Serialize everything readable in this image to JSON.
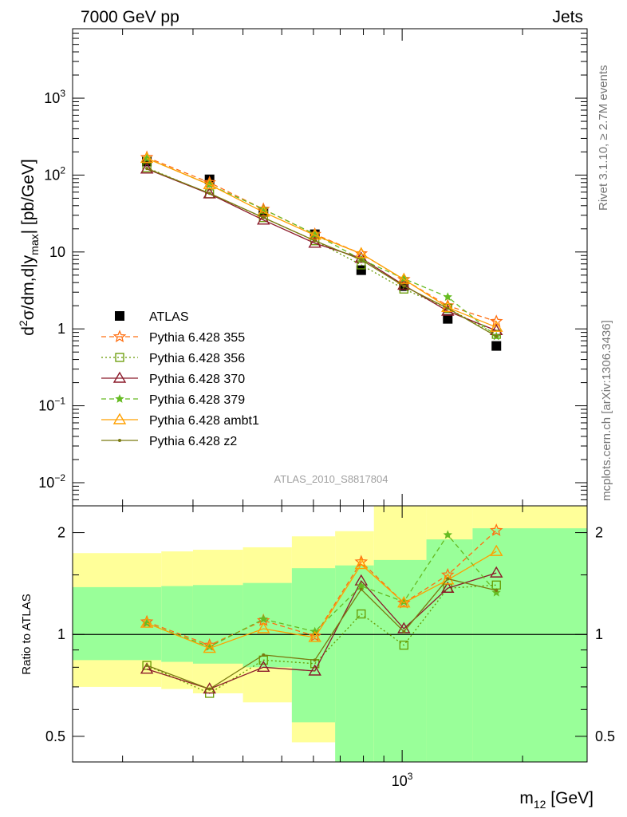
{
  "header": {
    "left": "7000 GeV pp",
    "right": "Jets"
  },
  "side": {
    "rivet": "Rivet 3.1.10, ≥ 2.7M events",
    "mcplots": "mcplots.cern.ch [arXiv:1306.3436]"
  },
  "watermark": "ATLAS_2010_S8817804",
  "colors": {
    "band_yellow": "#ffff99",
    "band_green": "#99ff99"
  },
  "chart_data": [
    {
      "type": "scatter",
      "panel": "main",
      "ylabel": "d²σ/dm,d|y_max| [pb/GeV]",
      "yscale": "log",
      "ylim": [
        0.005,
        8000
      ],
      "xscale": "log",
      "xlim": [
        150,
        2900
      ],
      "x": [
        230,
        330,
        450,
        605,
        790,
        1010,
        1300,
        1720
      ],
      "y_tick_labels": [
        "10⁻²",
        "10⁻¹",
        "1",
        "10",
        "10²",
        "10³"
      ],
      "series": [
        {
          "name": "ATLAS",
          "color": "#000000",
          "marker": "square",
          "style": "none",
          "values": [
            150,
            88,
            33,
            17,
            5.8,
            3.6,
            1.35,
            0.6
          ]
        },
        {
          "name": "Pythia 6.428 355",
          "color": "#ff6f11",
          "marker": "star-open",
          "style": "dashed",
          "values": [
            170,
            80,
            36,
            17,
            9.5,
            4.4,
            2.0,
            1.25
          ]
        },
        {
          "name": "Pythia 6.428 356",
          "color": "#669900",
          "marker": "square-open",
          "style": "dotted",
          "values": [
            125,
            57,
            28,
            14,
            6.8,
            3.3,
            1.85,
            0.85
          ]
        },
        {
          "name": "Pythia 6.428 370",
          "color": "#8b1a2a",
          "marker": "triangle-open",
          "style": "solid",
          "values": [
            120,
            57,
            26,
            13,
            8.3,
            3.7,
            1.7,
            0.95
          ]
        },
        {
          "name": "Pythia 6.428 379",
          "color": "#66bb22",
          "marker": "star",
          "style": "dashed",
          "values": [
            165,
            75,
            36,
            17,
            8.0,
            4.5,
            2.6,
            0.8
          ]
        },
        {
          "name": "Pythia 6.428 ambt1",
          "color": "#ffa000",
          "marker": "triangle-open",
          "style": "solid",
          "values": [
            165,
            75,
            33,
            16.5,
            9.5,
            4.4,
            1.9,
            1.05
          ]
        },
        {
          "name": "Pythia 6.428 z2",
          "color": "#7a7a10",
          "marker": "dot",
          "style": "solid",
          "values": [
            122,
            58,
            28,
            14,
            7.9,
            3.6,
            1.85,
            0.8
          ]
        }
      ]
    },
    {
      "type": "scatter",
      "panel": "ratio",
      "ylabel": "Ratio to ATLAS",
      "yscale": "log",
      "ylim": [
        0.42,
        2.4
      ],
      "xlabel": "m₁₂ [GeV]",
      "xscale": "log",
      "xlim": [
        150,
        2900
      ],
      "x_tick_labels": [
        "10³"
      ],
      "y_tick_labels": [
        "0.5",
        "1",
        "2"
      ],
      "reference_line": 1,
      "bin_edges": [
        150,
        250,
        300,
        400,
        530,
        680,
        850,
        1150,
        1500,
        2900
      ],
      "band_yellow": {
        "lo": [
          0.7,
          0.69,
          0.67,
          0.63,
          0.48,
          0.48,
          0.35,
          0.3,
          0.3
        ],
        "hi": [
          1.74,
          1.76,
          1.78,
          1.81,
          1.95,
          2.02,
          2.4,
          2.4,
          2.4
        ]
      },
      "band_green": {
        "lo": [
          0.84,
          0.83,
          0.82,
          0.8,
          0.55,
          0.42,
          0.42,
          0.42,
          0.42
        ],
        "hi": [
          1.38,
          1.39,
          1.4,
          1.42,
          1.57,
          1.6,
          1.66,
          1.91,
          2.06
        ]
      },
      "series": [
        {
          "name": "Pythia 6.428 355",
          "values": [
            1.09,
            0.93,
            1.1,
            0.99,
            1.64,
            1.24,
            1.5,
            2.03
          ]
        },
        {
          "name": "Pythia 6.428 356",
          "values": [
            0.81,
            0.67,
            0.84,
            0.82,
            1.15,
            0.93,
            1.37,
            1.4
          ]
        },
        {
          "name": "Pythia 6.428 370",
          "values": [
            0.79,
            0.69,
            0.8,
            0.78,
            1.44,
            1.04,
            1.37,
            1.52
          ]
        },
        {
          "name": "Pythia 6.428 379",
          "values": [
            1.08,
            0.92,
            1.11,
            1.02,
            1.39,
            1.25,
            1.97,
            1.33
          ]
        },
        {
          "name": "Pythia 6.428 ambt1",
          "values": [
            1.08,
            0.91,
            1.04,
            0.98,
            1.61,
            1.24,
            1.45,
            1.76
          ]
        },
        {
          "name": "Pythia 6.428 z2",
          "values": [
            0.81,
            0.69,
            0.87,
            0.84,
            1.36,
            1.02,
            1.46,
            1.35
          ]
        }
      ]
    }
  ]
}
